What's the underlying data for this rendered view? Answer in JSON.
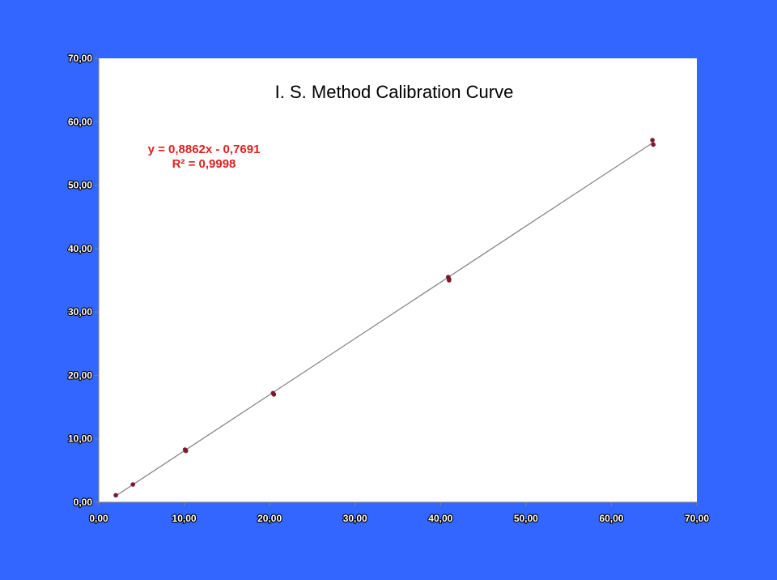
{
  "chart_data": {
    "type": "scatter",
    "title": "I. S. Method Calibration Curve",
    "xlabel": "",
    "ylabel": "",
    "xlim": [
      0,
      70
    ],
    "ylim": [
      0,
      70
    ],
    "x_ticks": [
      "0,00",
      "10,00",
      "20,00",
      "30,00",
      "40,00",
      "50,00",
      "60,00",
      "70,00"
    ],
    "y_ticks": [
      "0,00",
      "10,00",
      "20,00",
      "30,00",
      "40,00",
      "50,00",
      "60,00",
      "70,00"
    ],
    "grid": false,
    "series": [
      {
        "points": [
          {
            "x": 2.0,
            "y": 1.1
          },
          {
            "x": 4.0,
            "y": 2.8
          },
          {
            "x": 10.1,
            "y": 8.3
          },
          {
            "x": 10.2,
            "y": 8.1
          },
          {
            "x": 20.4,
            "y": 17.2
          },
          {
            "x": 20.5,
            "y": 17.0
          },
          {
            "x": 40.9,
            "y": 35.5
          },
          {
            "x": 41.0,
            "y": 35.0
          },
          {
            "x": 41.0,
            "y": 35.2
          },
          {
            "x": 64.8,
            "y": 57.1
          },
          {
            "x": 64.9,
            "y": 56.4
          }
        ],
        "marker_color": "#7a1a2e"
      }
    ],
    "trendline": {
      "slope": 0.8862,
      "intercept": -0.7691,
      "x_range": [
        2.0,
        64.9
      ],
      "equation_label": "y = 0,8862x - 0,7691",
      "r2_label": "R² = 0,9998",
      "label_color": "#e02020",
      "line_color": "#808080"
    }
  },
  "colors": {
    "slide_background": "#3366ff",
    "plot_background": "#ffffff"
  }
}
